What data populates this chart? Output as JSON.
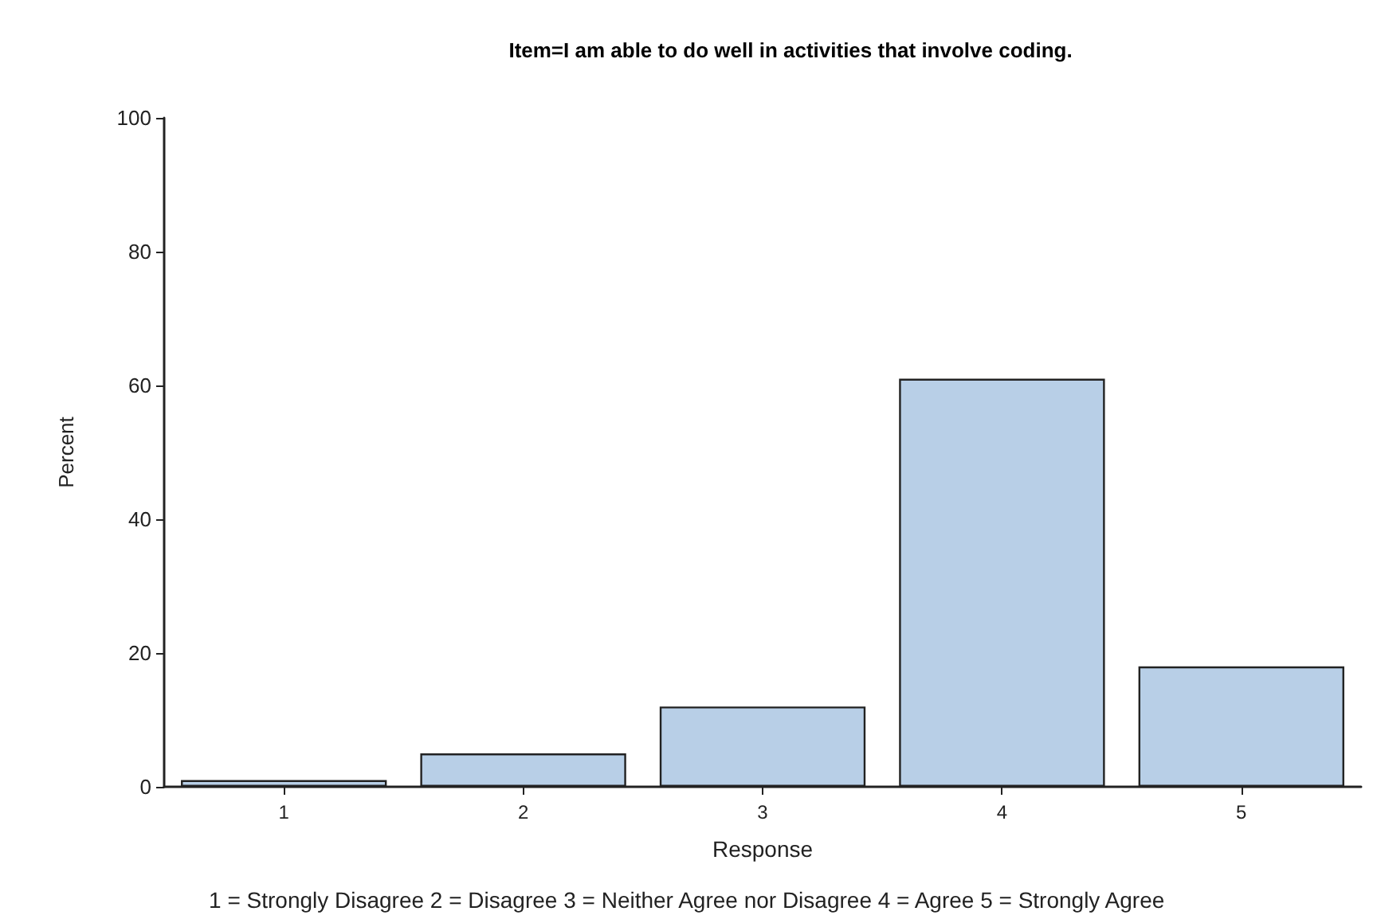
{
  "chart_data": {
    "type": "bar",
    "title": "Item=I am able to do well in activities that involve coding.",
    "xlabel": "Response",
    "ylabel": "Percent",
    "categories": [
      "1",
      "2",
      "3",
      "4",
      "5"
    ],
    "values": [
      1,
      5,
      12,
      61,
      18
    ],
    "color": "#b8cfe7",
    "ylim": [
      0,
      100
    ],
    "yticks": [
      0,
      20,
      40,
      60,
      80,
      100
    ],
    "grid": false,
    "annotations": [
      "1 = Strongly Disagree 2 = Disagree 3 = Neither Agree nor Disagree 4 = Agree 5 = Strongly Agree"
    ]
  }
}
